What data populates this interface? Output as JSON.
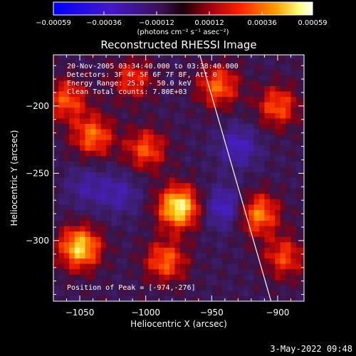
{
  "chart_data": {
    "type": "heatmap",
    "title": "Reconstructed RHESSI Image",
    "xlabel": "Heliocentric X (arcsec)",
    "ylabel": "Heliocentric Y (arcsec)",
    "xlim": [
      -1070,
      -880
    ],
    "ylim": [
      -345,
      -162
    ],
    "x_ticks": [
      -1050,
      -1000,
      -950,
      -900
    ],
    "y_ticks": [
      -200,
      -250,
      -300
    ],
    "x_tick_labels": [
      "−1050",
      "−1000",
      "−950",
      "−900"
    ],
    "y_tick_labels": [
      "−200",
      "−250",
      "−300"
    ],
    "colorbar": {
      "range": [
        -0.00059,
        0.00059
      ],
      "tick_labels": [
        "-0.00059",
        "-0.00036",
        "-0.00012",
        "0.00012",
        "0.00036",
        "0.00059"
      ],
      "units_label": "(photons cm⁻² s⁻¹ asec⁻²)",
      "colormap": "blue-purple-red-orange-yellow-white"
    },
    "annotations": [
      "20-Nov-2005 03:34:40.000 to 03:38:40.000",
      "Detectors: 3F 4F 5F 6F 7F 8F, Att 0",
      "Energy Range: 25.0 - 50.0 keV",
      "Clean    Total counts: 7.80E+03"
    ],
    "peak_label": "Position of Peak = [-974,-276]",
    "peak": [
      -974,
      -276
    ],
    "limb_line": {
      "x": [
        -959,
        -905
      ],
      "y": [
        -162,
        -345
      ]
    },
    "sources": [
      {
        "x": -975,
        "y": -275,
        "level": 1.0
      },
      {
        "x": -1050,
        "y": -305,
        "level": 0.9
      },
      {
        "x": -1040,
        "y": -222,
        "level": 0.62
      },
      {
        "x": -1060,
        "y": -195,
        "level": 0.55
      },
      {
        "x": -1000,
        "y": -232,
        "level": 0.55
      },
      {
        "x": -985,
        "y": -315,
        "level": 0.6
      },
      {
        "x": -945,
        "y": -185,
        "level": 0.6
      },
      {
        "x": -915,
        "y": -280,
        "level": 0.7
      },
      {
        "x": -900,
        "y": -200,
        "level": 0.55
      },
      {
        "x": -895,
        "y": -312,
        "level": 0.5
      },
      {
        "x": -1010,
        "y": -180,
        "level": 0.45
      },
      {
        "x": -930,
        "y": -230,
        "level": -0.45
      },
      {
        "x": -940,
        "y": -275,
        "level": -0.5
      },
      {
        "x": -1020,
        "y": -265,
        "level": -0.35
      },
      {
        "x": -1045,
        "y": -260,
        "level": -0.3
      }
    ]
  },
  "footer": {
    "timestamp": "3-May-2022 09:48"
  },
  "colors": {
    "background": "#000000",
    "text": "#ffffff"
  }
}
